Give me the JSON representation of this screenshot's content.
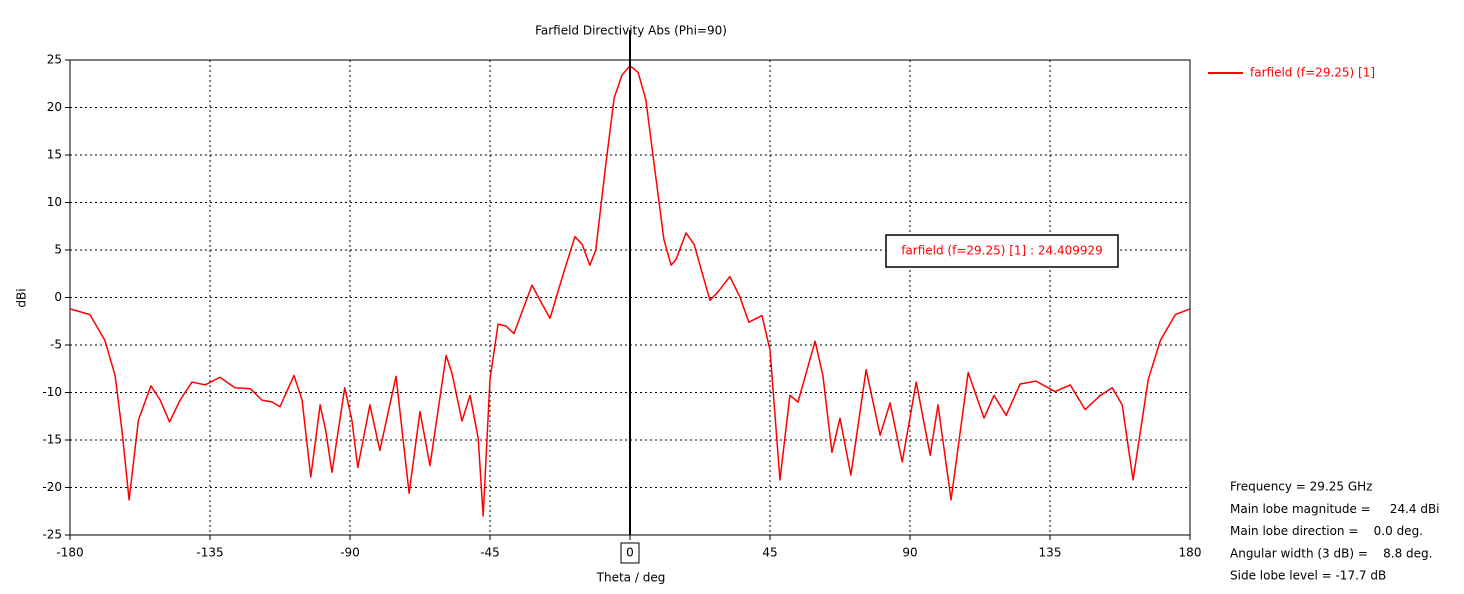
{
  "chart_data": {
    "type": "line",
    "title": "Farfield Directivity Abs (Phi=90)",
    "x_label": "Theta / deg",
    "y_label": "dBi",
    "xlim": [
      -180,
      180
    ],
    "xticks": [
      -180,
      -135,
      -90,
      -45,
      0,
      45,
      90,
      135,
      180
    ],
    "ylim": [
      -25,
      25
    ],
    "yticks": [
      -25,
      -20,
      -15,
      -10,
      -5,
      0,
      5,
      10,
      15,
      20,
      25
    ],
    "grid": true,
    "legend": "top-right",
    "marker_x": 0,
    "annotation": "farfield (f=29.25) [1] : 24.409929",
    "info": [
      "Frequency = 29.25 GHz",
      "Main lobe magnitude =     24.4 dBi",
      "Main lobe direction =    0.0 deg.",
      "Angular width (3 dB) =    8.8 deg.",
      "Side lobe level = -17.7 dB"
    ],
    "series": [
      {
        "name": "farfield (f=29.25) [1]",
        "color": "#ff0000",
        "x": [
          -180,
          -173.6,
          -168.8,
          -165.5,
          -163.3,
          -161,
          -158,
          -154,
          -151,
          -148,
          -144.6,
          -140.8,
          -136.6,
          -131.8,
          -127,
          -122,
          -118.3,
          -115,
          -112.5,
          -108,
          -105.4,
          -102.6,
          -99.6,
          -97.8,
          -95.8,
          -91.7,
          -89.4,
          -87.5,
          -83.6,
          -80.4,
          -75.2,
          -71,
          -67.5,
          -64.3,
          -59.1,
          -57.2,
          -54,
          -51.4,
          -48.8,
          -47.2,
          -45,
          -42.4,
          -39.9,
          -37.3,
          -31.5,
          -28.9,
          -25.7,
          -21.9,
          -17.7,
          -15.4,
          -12.9,
          -11,
          -8,
          -5.1,
          -2.6,
          0,
          2.6,
          5.1,
          8,
          10.9,
          13.2,
          14.8,
          18,
          20.6,
          25.7,
          28.3,
          32.1,
          35.4,
          38.2,
          42.4,
          45,
          48.2,
          51.4,
          54,
          59.5,
          62,
          64.9,
          67.5,
          71,
          75.9,
          80.4,
          83.6,
          87.5,
          92,
          96.5,
          99,
          103.2,
          108.7,
          113.8,
          117,
          120.9,
          125.4,
          130.5,
          136.6,
          141.5,
          146.3,
          151.2,
          155,
          158.2,
          161.7,
          166.6,
          170.5,
          175.3,
          180
        ],
        "values": [
          -1.2,
          -1.8,
          -4.5,
          -8.2,
          -14,
          -21.3,
          -12.9,
          -9.3,
          -10.8,
          -13.1,
          -10.8,
          -8.9,
          -9.2,
          -8.4,
          -9.5,
          -9.6,
          -10.8,
          -11,
          -11.5,
          -8.2,
          -10.8,
          -18.9,
          -11.3,
          -14,
          -18.4,
          -9.5,
          -12.9,
          -17.9,
          -11.3,
          -16.1,
          -8.3,
          -20.6,
          -12,
          -17.7,
          -6.1,
          -8,
          -13,
          -10.3,
          -14.8,
          -23,
          -8.6,
          -2.8,
          -3,
          -3.8,
          1.3,
          -0.3,
          -2.2,
          2,
          6.4,
          5.6,
          3.4,
          5,
          13.4,
          21,
          23.4,
          24.4,
          23.7,
          20.8,
          13.4,
          6.1,
          3.4,
          4,
          6.8,
          5.6,
          -0.3,
          0.6,
          2.2,
          0,
          -2.6,
          -1.9,
          -5.5,
          -19.2,
          -10.3,
          -11,
          -4.6,
          -8.2,
          -16.3,
          -12.7,
          -18.7,
          -7.6,
          -14.5,
          -11.1,
          -17.3,
          -8.9,
          -16.6,
          -11.3,
          -21.3,
          -7.9,
          -12.7,
          -10.3,
          -12.4,
          -9.1,
          -8.8,
          -9.9,
          -9.2,
          -11.8,
          -10.3,
          -9.5,
          -11.3,
          -19.2,
          -8.6,
          -4.5,
          -1.8,
          -1.2
        ]
      }
    ]
  }
}
